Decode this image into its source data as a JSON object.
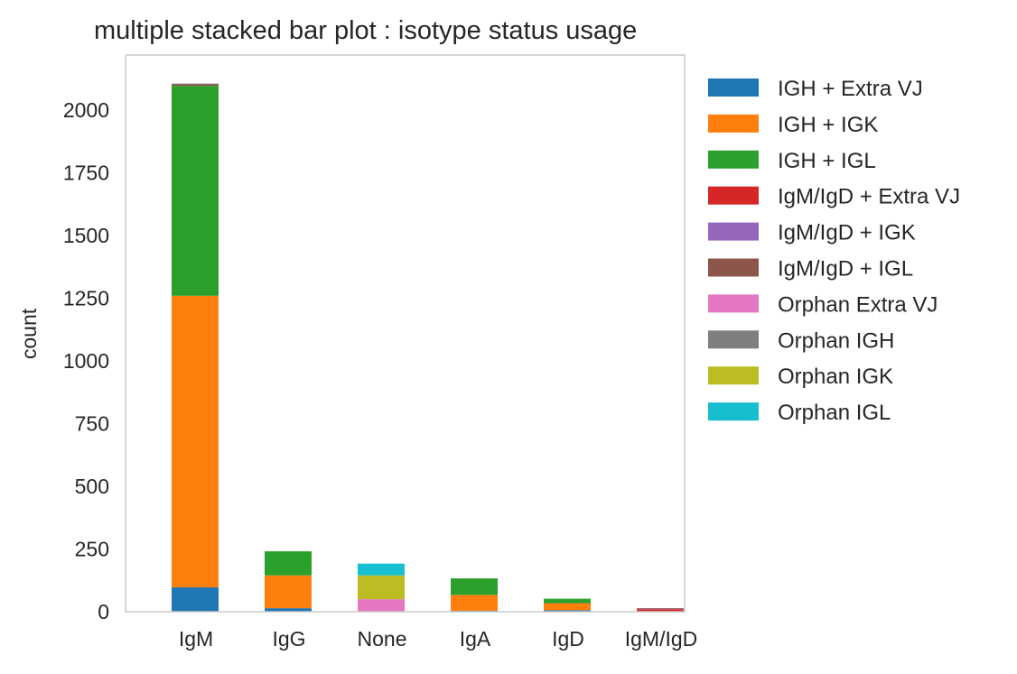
{
  "chart_data": {
    "type": "bar",
    "stacked": true,
    "title": "multiple stacked bar plot : isotype status usage",
    "xlabel": "",
    "ylabel": "count",
    "ylim": [
      0,
      2220
    ],
    "yticks": [
      0,
      250,
      500,
      750,
      1000,
      1250,
      1500,
      1750,
      2000
    ],
    "grid": false,
    "legend_position": "outside-right",
    "categories": [
      "IgM",
      "IgG",
      "None",
      "IgA",
      "IgD",
      "IgM/IgD"
    ],
    "series": [
      {
        "name": "IGH + Extra VJ",
        "color": "#1f77b4",
        "values": [
          97,
          14,
          0,
          4,
          6,
          0
        ]
      },
      {
        "name": "IGH + IGK",
        "color": "#ff7f0e",
        "values": [
          1163,
          131,
          0,
          63,
          28,
          0
        ]
      },
      {
        "name": "IGH + IGL",
        "color": "#2ca02c",
        "values": [
          837,
          96,
          0,
          66,
          18,
          0
        ]
      },
      {
        "name": "IgM/IgD + Extra VJ",
        "color": "#d62728",
        "values": [
          0,
          0,
          0,
          0,
          0,
          10
        ]
      },
      {
        "name": "IgM/IgD + IGK",
        "color": "#9467bd",
        "values": [
          0,
          0,
          0,
          0,
          0,
          3
        ]
      },
      {
        "name": "IgM/IgD + IGL",
        "color": "#8c564b",
        "values": [
          6,
          0,
          0,
          0,
          0,
          1
        ]
      },
      {
        "name": "Orphan Extra VJ",
        "color": "#e377c2",
        "values": [
          0,
          0,
          50,
          0,
          0,
          0
        ]
      },
      {
        "name": "Orphan IGH",
        "color": "#7f7f7f",
        "values": [
          3,
          0,
          0,
          0,
          0,
          0
        ]
      },
      {
        "name": "Orphan IGK",
        "color": "#bcbd22",
        "values": [
          0,
          0,
          95,
          0,
          0,
          0
        ]
      },
      {
        "name": "Orphan IGL",
        "color": "#17becf",
        "values": [
          0,
          0,
          47,
          0,
          0,
          0
        ]
      }
    ]
  }
}
